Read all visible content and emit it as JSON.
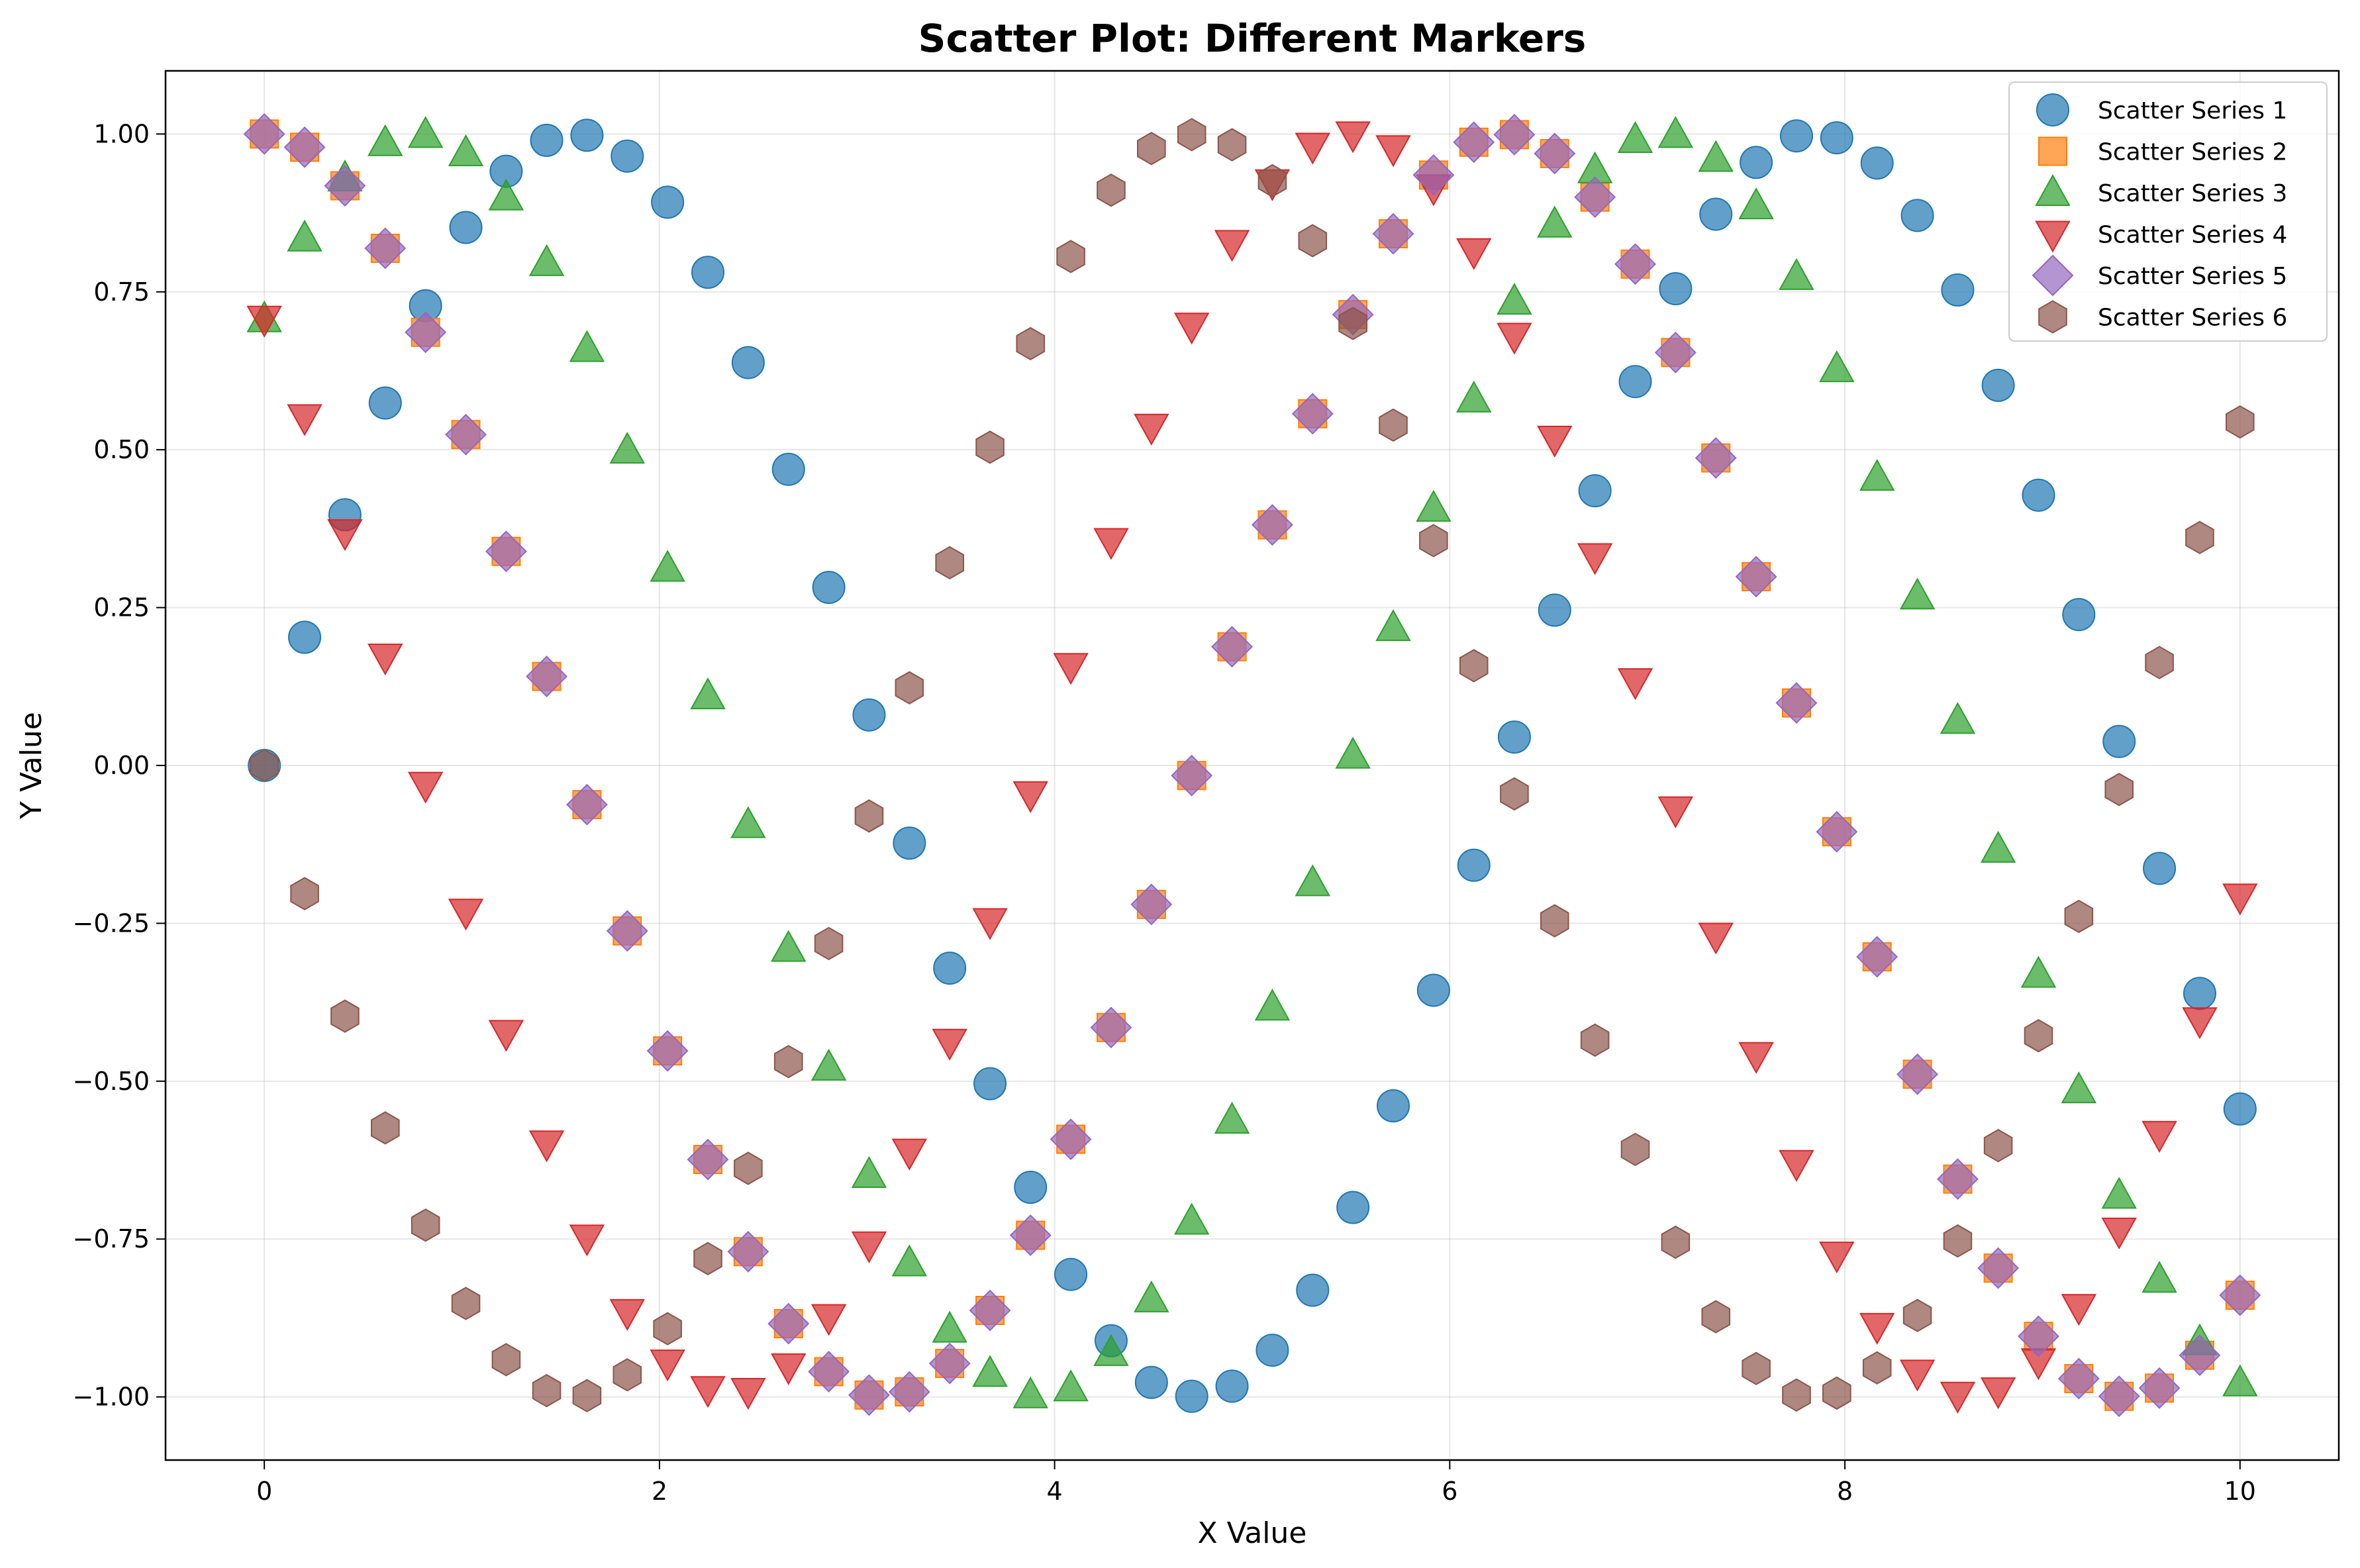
{
  "chart_data": {
    "type": "scatter",
    "title": "Scatter Plot: Different Markers",
    "xlabel": "X Value",
    "ylabel": "Y Value",
    "xlim": [
      -0.5,
      10.5
    ],
    "ylim": [
      -1.1,
      1.1
    ],
    "xticks": [
      0,
      2,
      4,
      6,
      8,
      10
    ],
    "xtick_labels": [
      "0",
      "2",
      "4",
      "6",
      "8",
      "10"
    ],
    "yticks": [
      -1.0,
      -0.75,
      -0.5,
      -0.25,
      0.0,
      0.25,
      0.5,
      0.75,
      1.0
    ],
    "ytick_labels": [
      "−1.00",
      "−0.75",
      "−0.50",
      "−0.25",
      "0.00",
      "0.25",
      "0.50",
      "0.75",
      "1.00"
    ],
    "grid": true,
    "legend_position": "top-right",
    "x": [
      0.0,
      0.204,
      0.408,
      0.612,
      0.816,
      1.02,
      1.224,
      1.429,
      1.633,
      1.837,
      2.041,
      2.245,
      2.449,
      2.653,
      2.857,
      3.061,
      3.265,
      3.469,
      3.673,
      3.878,
      4.082,
      4.286,
      4.49,
      4.694,
      4.898,
      5.102,
      5.306,
      5.51,
      5.714,
      5.918,
      6.122,
      6.327,
      6.531,
      6.735,
      6.939,
      7.143,
      7.347,
      7.551,
      7.755,
      7.959,
      8.163,
      8.367,
      8.571,
      8.776,
      8.98,
      9.184,
      9.388,
      9.592,
      9.796,
      10.0
    ],
    "series": [
      {
        "name": "Scatter Series 1",
        "marker": "circle",
        "color": "#1f77b4",
        "values": [
          0.0,
          0.203,
          0.397,
          0.574,
          0.728,
          0.852,
          0.941,
          0.99,
          0.998,
          0.965,
          0.892,
          0.781,
          0.638,
          0.469,
          0.282,
          0.08,
          -0.123,
          -0.321,
          -0.504,
          -0.668,
          -0.806,
          -0.911,
          -0.977,
          -0.999,
          -0.983,
          -0.926,
          -0.831,
          -0.7,
          -0.539,
          -0.356,
          -0.158,
          0.045,
          0.246,
          0.435,
          0.608,
          0.755,
          0.873,
          0.955,
          0.997,
          0.994,
          0.954,
          0.871,
          0.753,
          0.602,
          0.428,
          0.239,
          0.038,
          -0.163,
          -0.361,
          -0.544
        ]
      },
      {
        "name": "Scatter Series 2",
        "marker": "square",
        "color": "#ff7f0e",
        "values": [
          1.0,
          0.979,
          0.918,
          0.819,
          0.686,
          0.524,
          0.339,
          0.141,
          -0.062,
          -0.262,
          -0.452,
          -0.624,
          -0.77,
          -0.884,
          -0.96,
          -0.997,
          -0.992,
          -0.947,
          -0.863,
          -0.744,
          -0.592,
          -0.415,
          -0.22,
          -0.016,
          0.188,
          0.381,
          0.557,
          0.714,
          0.842,
          0.935,
          0.987,
          0.999,
          0.969,
          0.9,
          0.794,
          0.654,
          0.487,
          0.299,
          0.099,
          -0.105,
          -0.303,
          -0.489,
          -0.655,
          -0.796,
          -0.904,
          -0.971,
          -0.999,
          -0.986,
          -0.934,
          -0.839
        ]
      },
      {
        "name": "Scatter Series 3",
        "marker": "triangle-up",
        "color": "#2ca02c",
        "values": [
          0.707,
          0.835,
          0.93,
          0.986,
          0.999,
          0.97,
          0.9,
          0.796,
          0.66,
          0.499,
          0.312,
          0.11,
          -0.094,
          -0.29,
          -0.478,
          -0.648,
          -0.788,
          -0.893,
          -0.963,
          -0.997,
          -0.986,
          -0.93,
          -0.845,
          -0.722,
          -0.562,
          -0.383,
          -0.186,
          0.016,
          0.218,
          0.407,
          0.58,
          0.735,
          0.857,
          0.943,
          0.991,
          0.999,
          0.961,
          0.886,
          0.774,
          0.628,
          0.456,
          0.268,
          0.071,
          -0.133,
          -0.331,
          -0.514,
          -0.681,
          -0.814,
          -0.913,
          -0.978
        ]
      },
      {
        "name": "Scatter Series 4",
        "marker": "triangle-down",
        "color": "#d62728",
        "values": [
          0.707,
          0.551,
          0.369,
          0.172,
          -0.031,
          -0.232,
          -0.424,
          -0.599,
          -0.748,
          -0.866,
          -0.946,
          -0.988,
          -0.991,
          -0.952,
          -0.874,
          -0.759,
          -0.612,
          -0.438,
          -0.247,
          -0.046,
          0.157,
          0.355,
          0.536,
          0.696,
          0.827,
          0.923,
          0.981,
          0.999,
          0.977,
          0.915,
          0.814,
          0.68,
          0.517,
          0.331,
          0.133,
          -0.07,
          -0.27,
          -0.459,
          -0.63,
          -0.775,
          -0.888,
          -0.962,
          -0.997,
          -0.99,
          -0.944,
          -0.858,
          -0.737,
          -0.584,
          -0.404,
          -0.208
        ]
      },
      {
        "name": "Scatter Series 5",
        "marker": "diamond",
        "color": "#9467bd",
        "values": [
          1.0,
          0.979,
          0.918,
          0.819,
          0.686,
          0.524,
          0.339,
          0.141,
          -0.062,
          -0.262,
          -0.452,
          -0.624,
          -0.77,
          -0.884,
          -0.96,
          -0.997,
          -0.992,
          -0.947,
          -0.863,
          -0.744,
          -0.592,
          -0.415,
          -0.22,
          -0.016,
          0.188,
          0.381,
          0.557,
          0.714,
          0.842,
          0.935,
          0.987,
          0.999,
          0.969,
          0.9,
          0.794,
          0.654,
          0.487,
          0.299,
          0.099,
          -0.105,
          -0.303,
          -0.489,
          -0.655,
          -0.796,
          -0.904,
          -0.971,
          -0.999,
          -0.986,
          -0.934,
          -0.839
        ]
      },
      {
        "name": "Scatter Series 6",
        "marker": "hexagon",
        "color": "#8c564b",
        "values": [
          0.0,
          -0.203,
          -0.397,
          -0.574,
          -0.728,
          -0.852,
          -0.941,
          -0.99,
          -0.998,
          -0.965,
          -0.892,
          -0.781,
          -0.638,
          -0.469,
          -0.282,
          -0.08,
          0.123,
          0.321,
          0.504,
          0.668,
          0.806,
          0.911,
          0.977,
          0.999,
          0.983,
          0.926,
          0.831,
          0.7,
          0.539,
          0.356,
          0.158,
          -0.045,
          -0.246,
          -0.435,
          -0.608,
          -0.755,
          -0.873,
          -0.955,
          -0.997,
          -0.994,
          -0.954,
          -0.871,
          -0.753,
          -0.602,
          -0.428,
          -0.239,
          -0.038,
          0.163,
          0.361,
          0.544
        ]
      }
    ]
  }
}
